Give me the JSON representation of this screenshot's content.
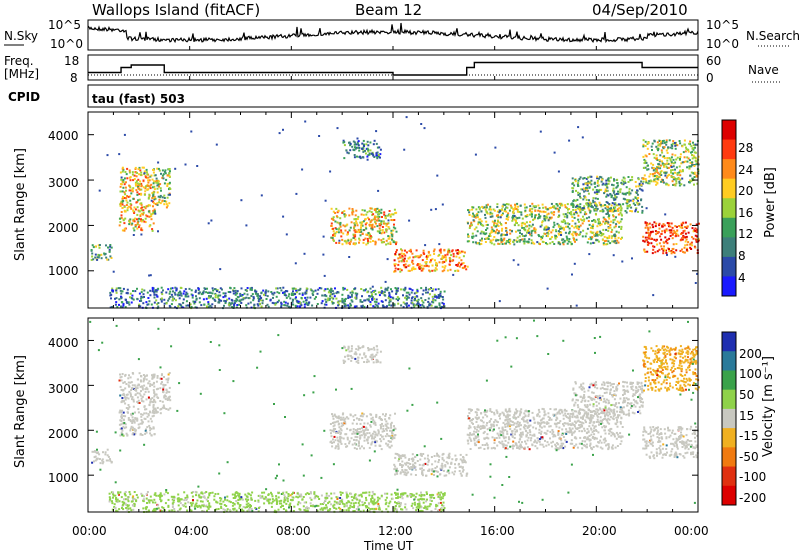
{
  "header": {
    "station": "Wallops Island (fitACF)",
    "beam": "Beam 12",
    "date": "04/Sep/2010"
  },
  "top_panels": {
    "nsky_label": "N.Sky",
    "nsearch_label": "N.Search",
    "nsky_ticks": [
      "10^5",
      "10^0"
    ],
    "nsearch_ticks": [
      "10^5",
      "10^0"
    ],
    "freq_label": "Freq.",
    "freq_unit": "[MHz]",
    "freq_ticks": [
      "18",
      "8"
    ],
    "nave_label": "Nave",
    "nave_ticks": [
      "60",
      "0"
    ],
    "cpid_label": "CPID",
    "cpid_text": "tau (fast) 503"
  },
  "axes": {
    "y_label": "Slant Range [km]",
    "y_ticks": [
      "1000",
      "2000",
      "3000",
      "4000"
    ],
    "x_label": "Time UT",
    "x_ticks": [
      "00:00",
      "04:00",
      "08:00",
      "12:00",
      "16:00",
      "20:00",
      "00:00"
    ]
  },
  "colorbars": {
    "power_label": "Power [dB]",
    "power_ticks": [
      "4",
      "8",
      "12",
      "16",
      "20",
      "24",
      "28"
    ],
    "velocity_label": "Velocity [m s⁻¹]",
    "velocity_ticks": [
      "200",
      "100",
      "50",
      "15",
      "-15",
      "-50",
      "-100",
      "-200"
    ]
  },
  "colors": {
    "power_scale": [
      "#1a1aff",
      "#2b4aa8",
      "#3d7f7a",
      "#3aa05a",
      "#9bd23a",
      "#ffcc22",
      "#ff8a1a",
      "#ff3a10",
      "#dd0000"
    ],
    "velocity_scale": [
      "#1f2fb0",
      "#2a7a9a",
      "#3aa24a",
      "#8fd24a",
      "#c8c8c0",
      "#f0b020",
      "#f07a10",
      "#e03010",
      "#dd0000"
    ]
  },
  "chart_data": {
    "type": "heatmap",
    "x_range_hours": [
      0,
      24
    ],
    "y_range_km": [
      180,
      4500
    ],
    "freq_steps": [
      {
        "t0": 0.0,
        "t1": 1.3,
        "mhz": 11
      },
      {
        "t0": 1.3,
        "t1": 1.7,
        "mhz": 13
      },
      {
        "t0": 1.7,
        "t1": 3.0,
        "mhz": 14
      },
      {
        "t0": 3.0,
        "t1": 12.0,
        "mhz": 11
      },
      {
        "t0": 12.0,
        "t1": 14.9,
        "mhz": 10
      },
      {
        "t0": 14.9,
        "t1": 15.2,
        "mhz": 13
      },
      {
        "t0": 15.2,
        "t1": 21.8,
        "mhz": 15
      },
      {
        "t0": 21.8,
        "t1": 24.0,
        "mhz": 13
      }
    ],
    "echo_regions": [
      {
        "t0": 0.1,
        "t1": 0.9,
        "r0": 1250,
        "r1": 1600,
        "power_db": 12,
        "vel": 0
      },
      {
        "t0": 1.2,
        "t1": 2.6,
        "r0": 1900,
        "r1": 3300,
        "power_db": 20,
        "vel": 0
      },
      {
        "t0": 2.5,
        "t1": 3.2,
        "r0": 2400,
        "r1": 3300,
        "power_db": 16,
        "vel": 0
      },
      {
        "t0": 9.5,
        "t1": 12.1,
        "r0": 1600,
        "r1": 2400,
        "power_db": 20,
        "vel": 0
      },
      {
        "t0": 10.0,
        "t1": 11.5,
        "r0": 3500,
        "r1": 3900,
        "power_db": 8,
        "vel": 0
      },
      {
        "t0": 12.0,
        "t1": 14.9,
        "r0": 1000,
        "r1": 1500,
        "power_db": 24,
        "vel": 0
      },
      {
        "t0": 14.9,
        "t1": 21.0,
        "r0": 1600,
        "r1": 2500,
        "power_db": 14,
        "vel": 0
      },
      {
        "t0": 19.0,
        "t1": 21.8,
        "r0": 2300,
        "r1": 3100,
        "power_db": 10,
        "vel": 0
      },
      {
        "t0": 21.8,
        "t1": 24.0,
        "r0": 1400,
        "r1": 2100,
        "power_db": 28,
        "vel": 0
      },
      {
        "t0": 21.8,
        "t1": 24.0,
        "r0": 2900,
        "r1": 3900,
        "power_db": 14,
        "vel": -50
      },
      {
        "t0": 0.8,
        "t1": 14.0,
        "r0": 200,
        "r1": 650,
        "power_db": 8,
        "vel": 40
      }
    ]
  }
}
